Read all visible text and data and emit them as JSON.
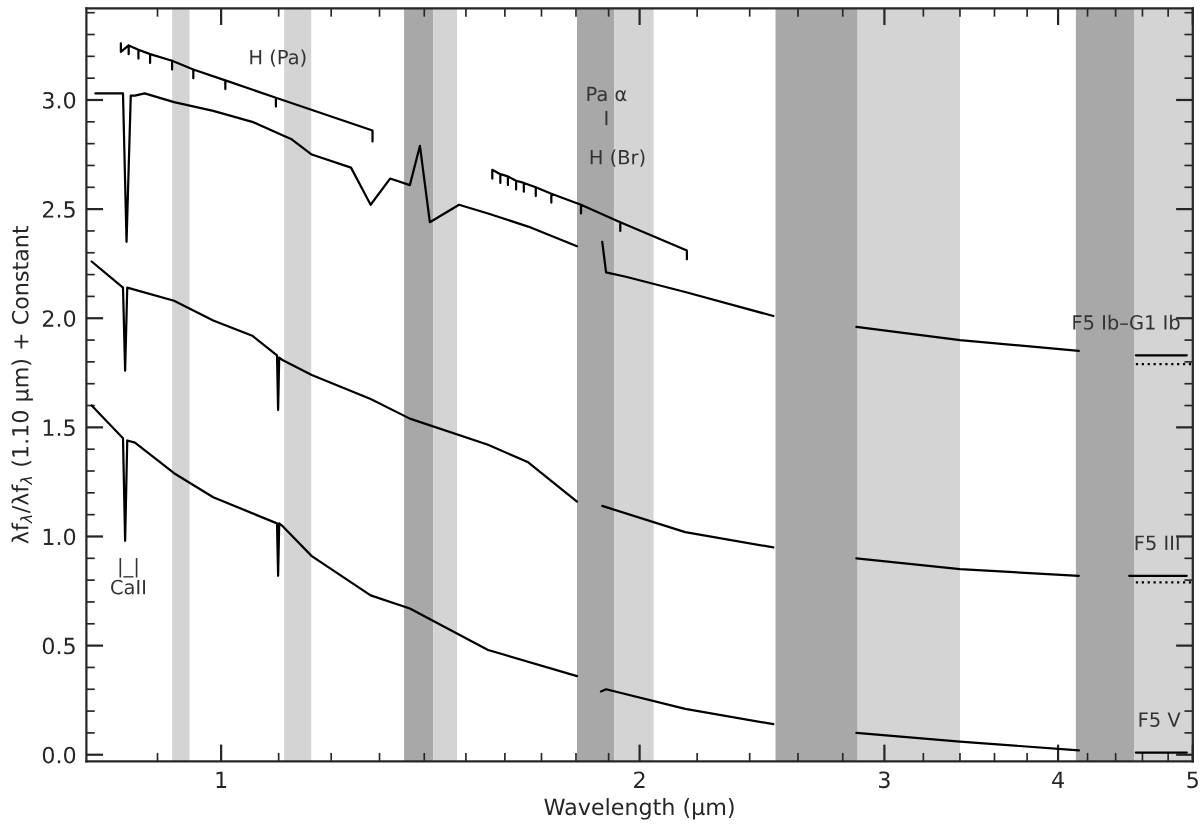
{
  "chart_data": {
    "type": "line",
    "xlabel": "Wavelength (μm)",
    "ylabel": "λf$_{λ}$/λf$_{λ}$ (1.10 μm) + Constant",
    "log": "x",
    "grid": false,
    "legend": false,
    "xlim": [
      0.8,
      5.0
    ],
    "ylim": [
      -0.03,
      3.42
    ],
    "xticks": [
      {
        "value": 0.9,
        "label": null
      },
      1,
      {
        "value": 1.1,
        "label": null
      },
      {
        "value": 1.2,
        "label": null
      },
      {
        "value": 1.3,
        "label": null
      },
      {
        "value": 1.4,
        "label": null
      },
      {
        "value": 1.5,
        "label": null
      },
      {
        "value": 1.6,
        "label": null
      },
      {
        "value": 1.7,
        "label": null
      },
      {
        "value": 1.8,
        "label": null
      },
      {
        "value": 1.9,
        "label": null
      },
      2,
      {
        "value": 2.2,
        "label": null
      },
      {
        "value": 2.4,
        "label": null
      },
      {
        "value": 2.6,
        "label": null
      },
      {
        "value": 2.8,
        "label": null
      },
      3,
      {
        "value": 3.2,
        "label": null
      },
      {
        "value": 3.4,
        "label": null
      },
      {
        "value": 3.6,
        "label": null
      },
      {
        "value": 3.8,
        "label": null
      },
      4,
      {
        "value": 4.2,
        "label": null
      },
      {
        "value": 4.4,
        "label": null
      },
      {
        "value": 4.6,
        "label": null
      },
      {
        "value": 4.8,
        "label": null
      },
      5
    ],
    "yticks": [
      {
        "value": 0.0,
        "label": "0.0"
      },
      {
        "value": 0.1,
        "label": null
      },
      {
        "value": 0.2,
        "label": null
      },
      {
        "value": 0.3,
        "label": null
      },
      {
        "value": 0.4,
        "label": null
      },
      {
        "value": 0.5,
        "label": "0.5"
      },
      {
        "value": 0.6,
        "label": null
      },
      {
        "value": 0.7,
        "label": null
      },
      {
        "value": 0.8,
        "label": null
      },
      {
        "value": 0.9,
        "label": null
      },
      {
        "value": 1.0,
        "label": "1.0"
      },
      {
        "value": 1.1,
        "label": null
      },
      {
        "value": 1.2,
        "label": null
      },
      {
        "value": 1.3,
        "label": null
      },
      {
        "value": 1.4,
        "label": null
      },
      {
        "value": 1.5,
        "label": "1.5"
      },
      {
        "value": 1.6,
        "label": null
      },
      {
        "value": 1.7,
        "label": null
      },
      {
        "value": 1.8,
        "label": null
      },
      {
        "value": 1.9,
        "label": null
      },
      {
        "value": 2.0,
        "label": "2.0"
      },
      {
        "value": 2.1,
        "label": null
      },
      {
        "value": 2.2,
        "label": null
      },
      {
        "value": 2.3,
        "label": null
      },
      {
        "value": 2.4,
        "label": null
      },
      {
        "value": 2.5,
        "label": "2.5"
      },
      {
        "value": 2.6,
        "label": null
      },
      {
        "value": 2.7,
        "label": null
      },
      {
        "value": 2.8,
        "label": null
      },
      {
        "value": 2.9,
        "label": null
      },
      {
        "value": 3.0,
        "label": "3.0"
      },
      {
        "value": 3.1,
        "label": null
      },
      {
        "value": 3.2,
        "label": null
      },
      {
        "value": 3.3,
        "label": null
      },
      {
        "value": 3.4,
        "label": null
      }
    ],
    "bands": [
      {
        "axis": "x",
        "from": 0.922,
        "to": 0.949,
        "color": "#d4d4d4"
      },
      {
        "axis": "x",
        "from": 1.11,
        "to": 1.161,
        "color": "#d4d4d4"
      },
      {
        "axis": "x",
        "from": 1.354,
        "to": 1.421,
        "color": "#a8a8a8"
      },
      {
        "axis": "x",
        "from": 1.421,
        "to": 1.478,
        "color": "#d4d4d4"
      },
      {
        "axis": "x",
        "from": 1.803,
        "to": 1.918,
        "color": "#a8a8a8"
      },
      {
        "axis": "x",
        "from": 1.918,
        "to": 2.047,
        "color": "#d4d4d4"
      },
      {
        "axis": "x",
        "from": 2.505,
        "to": 2.87,
        "color": "#a8a8a8"
      },
      {
        "axis": "x",
        "from": 2.87,
        "to": 3.4,
        "color": "#d4d4d4"
      },
      {
        "axis": "x",
        "from": 4.12,
        "to": 4.54,
        "color": "#a8a8a8"
      },
      {
        "axis": "x",
        "from": 4.54,
        "to": 5.0,
        "color": "#d4d4d4"
      }
    ],
    "series": [
      {
        "name": "F5 Ib–G1 Ib",
        "color": "#000000",
        "x": [
          0.812,
          0.85,
          0.855,
          0.861,
          0.867,
          0.881,
          0.925,
          0.987,
          1.053,
          1.106,
          1.124,
          1.162,
          1.24,
          1.281,
          1.323,
          1.367,
          1.39,
          1.413,
          1.483,
          1.556,
          1.663,
          1.803,
          1.84,
          1.88,
          1.892,
          1.955,
          2.157,
          2.496,
          2.68,
          2.864,
          3.4,
          4.14,
          4.3,
          4.55,
          4.95
        ],
        "values": [
          3.03,
          3.03,
          2.35,
          3.02,
          3.02,
          3.03,
          2.99,
          2.95,
          2.9,
          2.84,
          2.82,
          2.75,
          2.69,
          2.52,
          2.64,
          2.61,
          2.79,
          2.44,
          2.52,
          2.48,
          2.42,
          2.33,
          null,
          2.35,
          2.21,
          2.19,
          2.12,
          2.01,
          null,
          1.96,
          1.9,
          1.85,
          null,
          1.83,
          1.83
        ]
      },
      {
        "name": "F5 III",
        "color": "#000000",
        "x": [
          0.807,
          0.85,
          0.853,
          0.856,
          0.925,
          0.987,
          1.053,
          1.097,
          1.099,
          1.101,
          1.106,
          1.162,
          1.281,
          1.367,
          1.556,
          1.663,
          1.803,
          1.84,
          1.88,
          2.157,
          2.496,
          2.68,
          2.864,
          3.4,
          4.14,
          4.3,
          4.5,
          4.95
        ],
        "values": [
          2.26,
          2.14,
          1.76,
          2.14,
          2.08,
          1.99,
          1.92,
          1.83,
          1.58,
          1.82,
          1.81,
          1.74,
          1.63,
          1.54,
          1.42,
          1.34,
          1.16,
          null,
          1.14,
          1.02,
          0.95,
          null,
          0.9,
          0.85,
          0.82,
          null,
          0.82,
          0.82
        ]
      },
      {
        "name": "F5 V",
        "color": "#000000",
        "x": [
          0.807,
          0.85,
          0.853,
          0.856,
          0.867,
          0.925,
          0.987,
          1.097,
          1.099,
          1.101,
          1.106,
          1.162,
          1.281,
          1.367,
          1.556,
          1.803,
          1.84,
          1.876,
          1.892,
          2.157,
          2.496,
          2.68,
          2.864,
          3.4,
          4.14,
          4.3,
          4.55,
          4.95
        ],
        "values": [
          1.6,
          1.45,
          0.98,
          1.44,
          1.43,
          1.29,
          1.18,
          1.06,
          0.82,
          1.06,
          1.05,
          0.91,
          0.73,
          0.67,
          0.48,
          0.36,
          null,
          0.29,
          0.3,
          0.21,
          0.14,
          null,
          0.1,
          0.06,
          0.02,
          null,
          0.01,
          0.01
        ]
      },
      {
        "line_style": "dotted",
        "color": "#000000",
        "x": [
          4.55,
          5.0
        ],
        "values": [
          1.79,
          1.79
        ]
      },
      {
        "line_style": "dotted",
        "color": "#000000",
        "x": [
          4.55,
          5.0
        ],
        "values": [
          0.79,
          0.79
        ]
      },
      {
        "color": "#000000",
        "x": [
          0.847,
          0.847,
          0.847,
          0.858,
          0.858,
          0.858,
          0.872,
          0.872,
          0.872,
          0.889,
          0.889,
          0.889,
          0.922,
          0.922,
          0.922,
          0.955,
          0.955,
          0.955,
          1.007,
          1.007,
          1.007,
          1.095,
          1.095,
          1.095,
          1.285,
          1.285
        ],
        "values": [
          3.22,
          3.26,
          3.22,
          3.25,
          3.21,
          3.25,
          3.23,
          3.19,
          3.23,
          3.21,
          3.17,
          3.21,
          3.18,
          3.14,
          3.18,
          3.14,
          3.1,
          3.14,
          3.09,
          3.05,
          3.09,
          3.01,
          2.97,
          3.01,
          2.86,
          2.81
        ]
      },
      {
        "color": "#000000",
        "x": [
          1.567,
          1.567,
          1.588,
          1.588,
          1.588,
          1.608,
          1.608,
          1.608,
          1.63,
          1.63,
          1.63,
          1.651,
          1.651,
          1.651,
          1.684,
          1.684,
          1.684,
          1.728,
          1.728,
          1.728,
          1.815,
          1.815,
          1.815,
          1.937,
          1.937,
          1.937,
          2.163,
          2.163
        ],
        "values": [
          2.64,
          2.68,
          2.66,
          2.62,
          2.66,
          2.65,
          2.61,
          2.65,
          2.63,
          2.59,
          2.63,
          2.62,
          2.58,
          2.62,
          2.6,
          2.56,
          2.6,
          2.57,
          2.53,
          2.57,
          2.52,
          2.48,
          2.52,
          2.44,
          2.4,
          2.44,
          2.31,
          2.27
        ]
      }
    ],
    "annotations": [
      "H (Pa)",
      "Pa α",
      "I",
      "H (Br)",
      "|_|",
      "CaII"
    ]
  }
}
